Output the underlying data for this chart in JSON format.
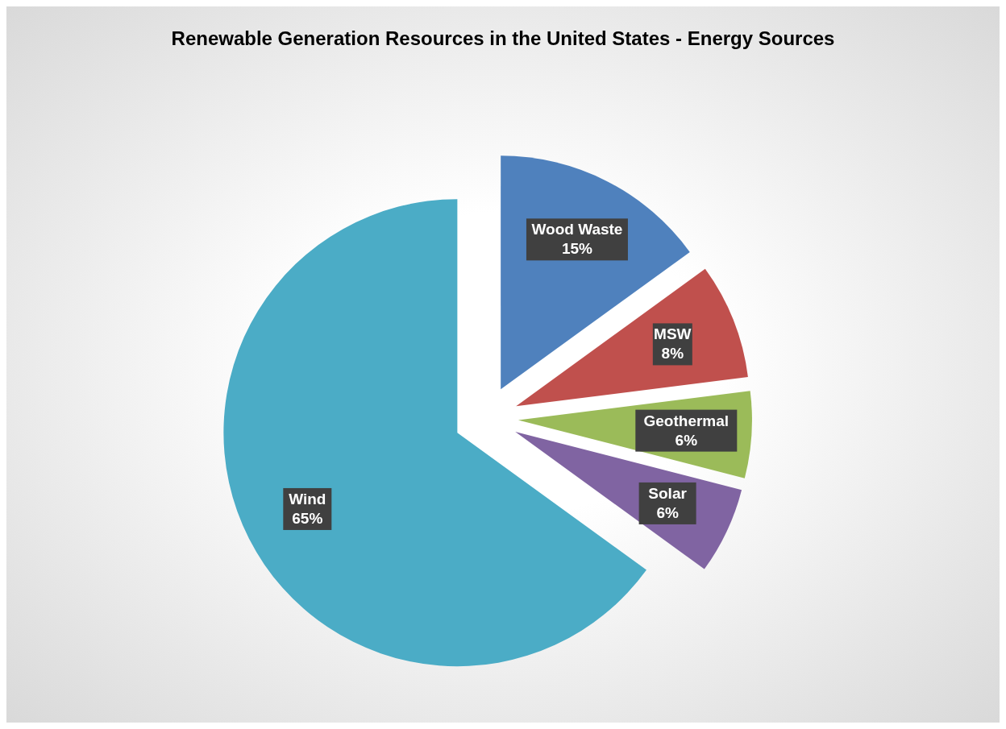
{
  "chart_data": {
    "type": "pie",
    "title": "Renewable Generation Resources in the United States - Energy Sources",
    "categories": [
      "Wood Waste",
      "MSW",
      "Geothermal",
      "Solar",
      "Wind"
    ],
    "values": [
      15,
      8,
      6,
      6,
      65
    ],
    "colors": [
      "#4f81bd",
      "#c0504d",
      "#9bbb59",
      "#8064a2",
      "#4bacc6"
    ],
    "value_labels": [
      "15%",
      "8%",
      "6%",
      "6%",
      "65%"
    ],
    "legend": false
  }
}
